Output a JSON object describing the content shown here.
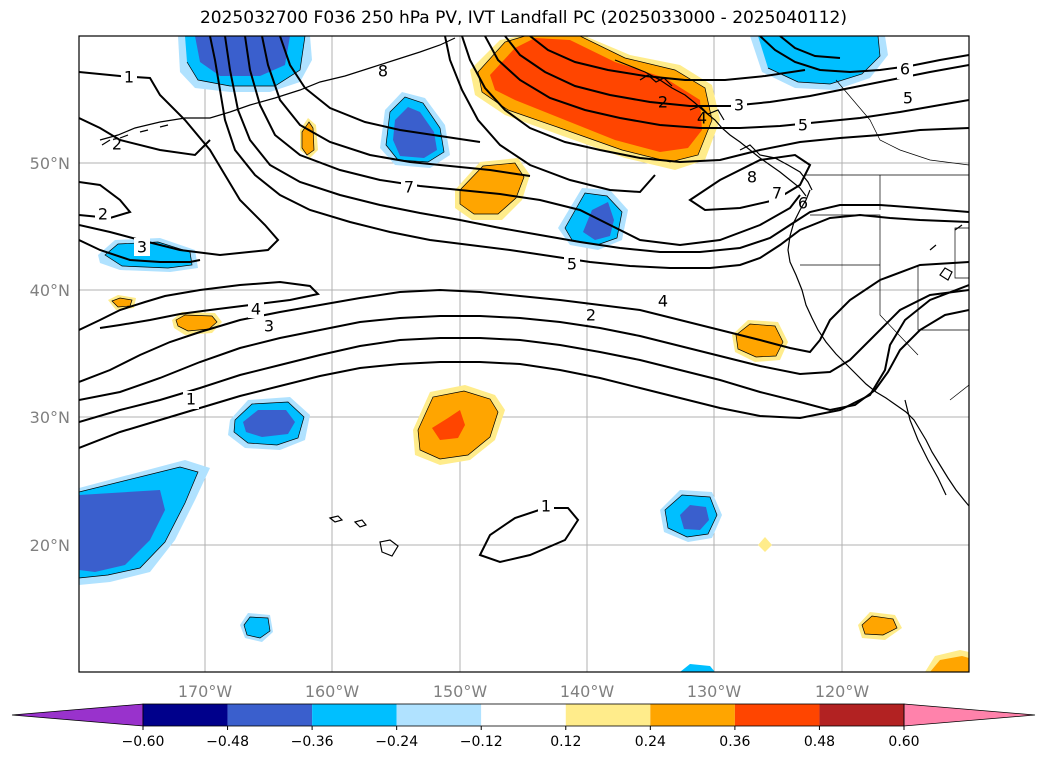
{
  "title": "2025032700 F036 250 hPa PV, IVT Landfall PC (2025033000 - 2025040112)",
  "map": {
    "lat_labels": [
      "50°N",
      "40°N",
      "30°N",
      "20°N"
    ],
    "lon_labels": [
      "170°W",
      "160°W",
      "150°W",
      "140°W",
      "130°W",
      "120°W"
    ]
  },
  "contour_labels": [
    "1",
    "2",
    "3",
    "4",
    "5",
    "6",
    "7",
    "8"
  ],
  "colorbar": {
    "ticks": [
      "−0.60",
      "−0.48",
      "−0.36",
      "−0.24",
      "−0.12",
      "0.12",
      "0.24",
      "0.36",
      "0.48",
      "0.60"
    ],
    "colors": [
      "#9932cc",
      "#00008b",
      "#3a5fcd",
      "#00bfff",
      "#b0e2ff",
      "#ffffff",
      "#ffec8b",
      "#ffa500",
      "#ff4500",
      "#b22222",
      "#ff82ab"
    ]
  }
}
